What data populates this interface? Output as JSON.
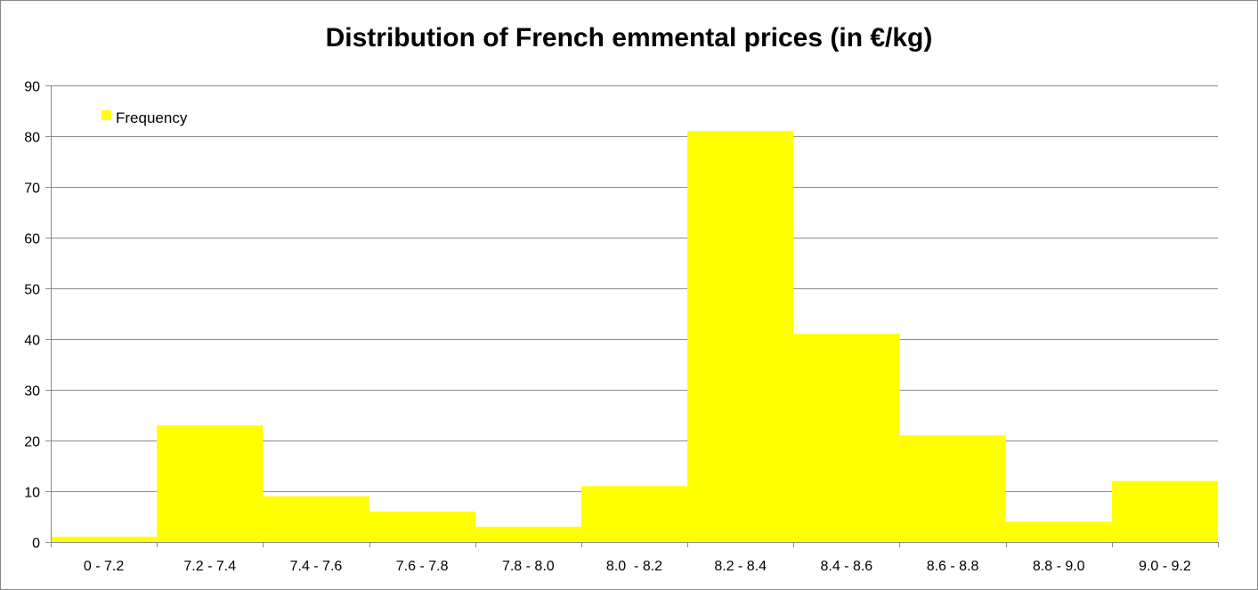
{
  "chart_data": {
    "type": "bar",
    "title": "Distribution of French emmental prices (in €/kg)",
    "xlabel": "",
    "ylabel": "",
    "categories": [
      "0 - 7.2",
      "7.2 - 7.4",
      "7.4 - 7.6",
      "7.6 - 7.8",
      "7.8 - 8.0",
      "8.0  - 8.2",
      "8.2 - 8.4",
      "8.4 - 8.6",
      "8.6 - 8.8",
      "8.8 - 9.0",
      "9.0 - 9.2"
    ],
    "series": [
      {
        "name": "Frequency",
        "values": [
          1,
          23,
          9,
          6,
          3,
          11,
          81,
          41,
          21,
          4,
          12
        ],
        "color": "#ffff00"
      }
    ],
    "ylim": [
      0,
      90
    ],
    "yticks": [
      0,
      10,
      20,
      30,
      40,
      50,
      60,
      70,
      80,
      90
    ],
    "grid": true,
    "legend": "top-left"
  }
}
